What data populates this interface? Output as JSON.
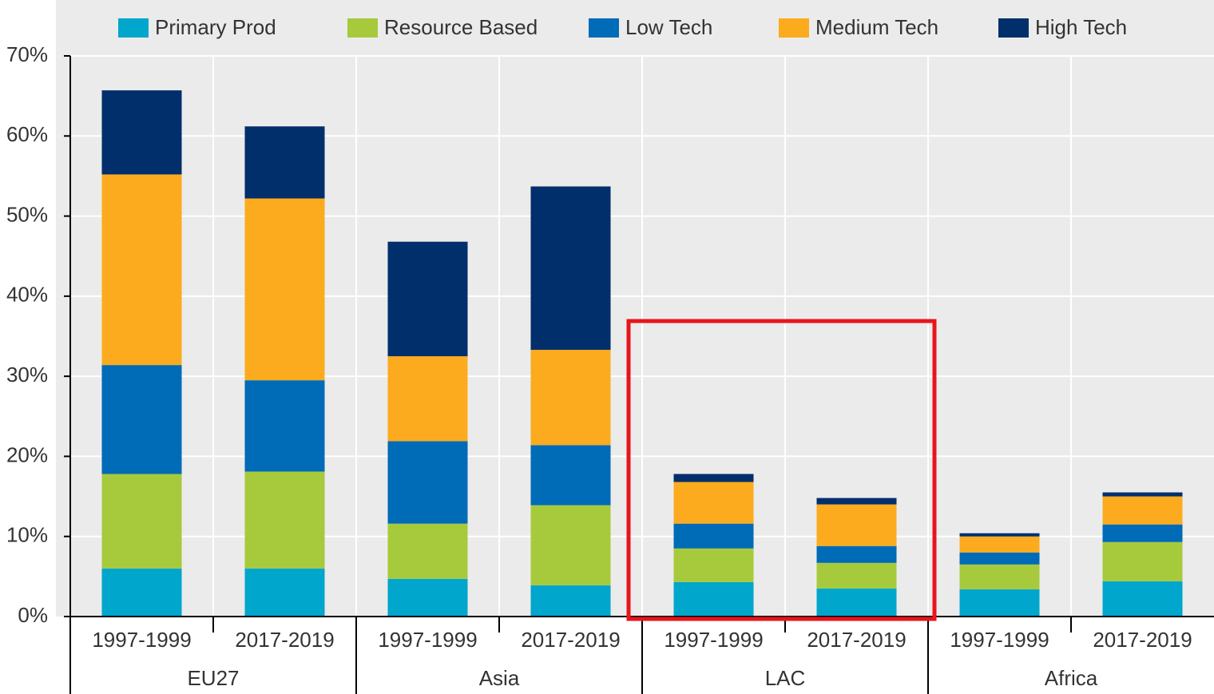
{
  "chart_data": {
    "type": "stacked_bar",
    "categories": [
      "1997-1999",
      "2017-2019",
      "1997-1999",
      "2017-2019",
      "1997-1999",
      "2017-2019",
      "1997-1999",
      "2017-2019"
    ],
    "groups": [
      {
        "name": "EU27",
        "size": 2
      },
      {
        "name": "Asia",
        "size": 2
      },
      {
        "name": "LAC",
        "size": 2
      },
      {
        "name": "Africa",
        "size": 2
      }
    ],
    "series": [
      {
        "name": "Primary Prod",
        "color": "#00a6cc",
        "values": [
          6.0,
          6.0,
          4.7,
          3.9,
          4.3,
          3.5,
          3.4,
          4.4
        ]
      },
      {
        "name": "Resource Based",
        "color": "#a6ca3c",
        "values": [
          11.8,
          12.1,
          6.9,
          10.0,
          4.2,
          3.2,
          3.1,
          4.9
        ]
      },
      {
        "name": "Low Tech",
        "color": "#006bb6",
        "values": [
          13.6,
          11.4,
          10.3,
          7.5,
          3.1,
          2.1,
          1.5,
          2.2
        ]
      },
      {
        "name": "Medium Tech",
        "color": "#fbab1d",
        "values": [
          23.8,
          22.7,
          10.6,
          11.9,
          5.2,
          5.2,
          2.0,
          3.5
        ]
      },
      {
        "name": "High Tech",
        "color": "#002f6c",
        "values": [
          10.5,
          9.0,
          14.3,
          20.4,
          1.0,
          0.8,
          0.4,
          0.5
        ]
      }
    ],
    "ylim": [
      0,
      70
    ],
    "yticks": [
      {
        "value": 0,
        "label": "0%"
      },
      {
        "value": 10,
        "label": "10%"
      },
      {
        "value": 20,
        "label": "20%"
      },
      {
        "value": 30,
        "label": "30%"
      },
      {
        "value": 40,
        "label": "40%"
      },
      {
        "value": 50,
        "label": "50%"
      },
      {
        "value": 60,
        "label": "60%"
      },
      {
        "value": 70,
        "label": "70%"
      }
    ],
    "grid": true,
    "legend": "top"
  }
}
